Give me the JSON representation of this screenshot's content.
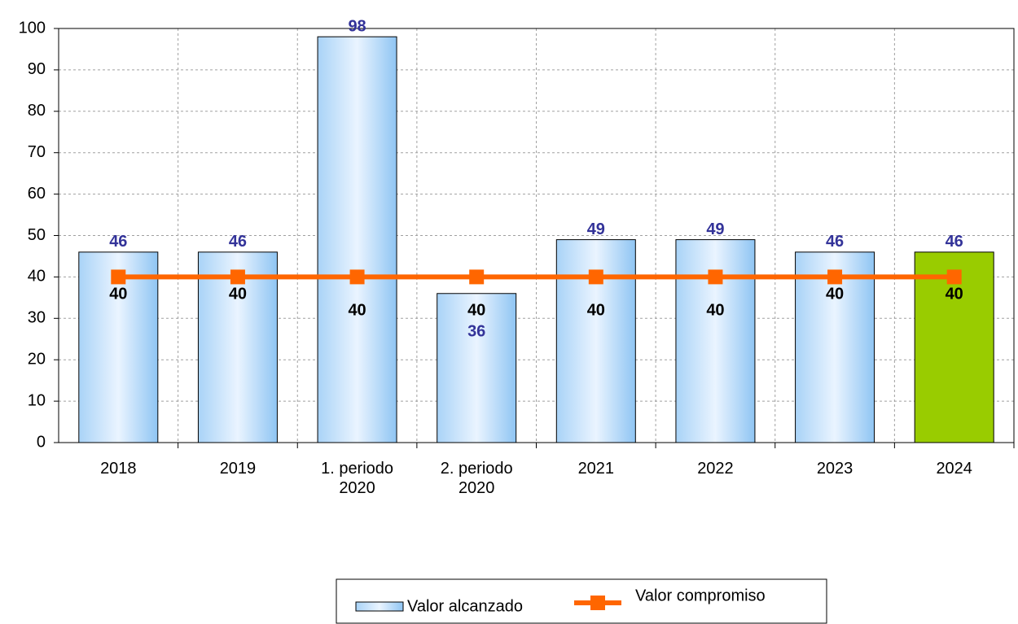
{
  "chart_data": {
    "type": "bar",
    "categories": [
      "2018",
      "2019",
      "1. periodo 2020",
      "2. periodo 2020",
      "2021",
      "2022",
      "2023",
      "2024"
    ],
    "series": [
      {
        "name": "Valor alcanzado",
        "type": "bar",
        "color": "#bfe0fb",
        "colors": [
          "#bfe0fb",
          "#bfe0fb",
          "#bfe0fb",
          "#bfe0fb",
          "#bfe0fb",
          "#bfe0fb",
          "#bfe0fb",
          "#99cc00"
        ],
        "values": [
          46,
          46,
          98,
          36,
          49,
          49,
          46,
          46
        ]
      },
      {
        "name": "Valor compromiso",
        "type": "line",
        "color": "#ff6600",
        "values": [
          40,
          40,
          40,
          40,
          40,
          40,
          40,
          40
        ]
      }
    ],
    "ylim": [
      0,
      100
    ],
    "yticks": [
      0,
      10,
      20,
      30,
      40,
      50,
      60,
      70,
      80,
      90,
      100
    ],
    "grid": true
  }
}
